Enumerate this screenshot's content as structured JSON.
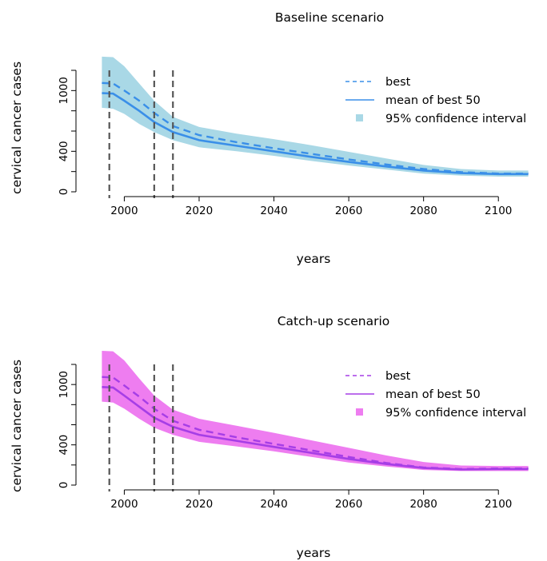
{
  "chart_data": [
    {
      "type": "line",
      "title": "Baseline scenario",
      "xlabel": "years",
      "ylabel": "cervical cancer cases",
      "xlim": [
        1992,
        2110
      ],
      "ylim": [
        0,
        1200
      ],
      "x_ticks": [
        2000,
        2020,
        2040,
        2060,
        2080,
        2100
      ],
      "y_ticks": [
        0,
        200,
        400,
        600,
        800,
        1000,
        1200
      ],
      "y_tick_labels": [
        "0",
        "",
        "400",
        "",
        "",
        "1000",
        ""
      ],
      "vertical_reference_lines": [
        1996,
        2008,
        2013
      ],
      "colors": {
        "line": "#3a8fe8",
        "band": "#a9d8e6",
        "reference": "#555555"
      },
      "legend": {
        "position": "top-right",
        "best_label": "best",
        "mean_label": "mean of best 50",
        "ci_label": "95% confidence interval"
      },
      "series": [
        {
          "name": "best",
          "style": "dashed",
          "x": [
            1994,
            1997,
            2000,
            2004,
            2008,
            2013,
            2020,
            2030,
            2040,
            2050,
            2060,
            2070,
            2080,
            2090,
            2100,
            2108
          ],
          "y": [
            1075,
            1070,
            1000,
            900,
            780,
            650,
            560,
            490,
            430,
            375,
            320,
            270,
            225,
            195,
            180,
            180
          ]
        },
        {
          "name": "mean of best 50",
          "style": "solid",
          "x": [
            1994,
            1997,
            2000,
            2004,
            2008,
            2013,
            2020,
            2030,
            2040,
            2050,
            2060,
            2070,
            2080,
            2090,
            2100,
            2108
          ],
          "y": [
            975,
            970,
            900,
            800,
            690,
            590,
            510,
            455,
            400,
            345,
            295,
            250,
            210,
            185,
            175,
            175
          ]
        },
        {
          "name": "95% confidence interval",
          "style": "band",
          "x": [
            1994,
            1997,
            2000,
            2004,
            2008,
            2013,
            2020,
            2030,
            2040,
            2050,
            2060,
            2070,
            2080,
            2090,
            2100,
            2108
          ],
          "lower": [
            830,
            820,
            770,
            670,
            590,
            510,
            440,
            400,
            355,
            305,
            260,
            220,
            180,
            160,
            150,
            150
          ],
          "upper": [
            1335,
            1330,
            1240,
            1070,
            900,
            740,
            640,
            575,
            520,
            460,
            395,
            330,
            265,
            225,
            210,
            210
          ]
        }
      ]
    },
    {
      "type": "line",
      "title": "Catch-up scenario",
      "xlabel": "years",
      "ylabel": "cervical cancer cases",
      "xlim": [
        1992,
        2110
      ],
      "ylim": [
        0,
        1200
      ],
      "x_ticks": [
        2000,
        2020,
        2040,
        2060,
        2080,
        2100
      ],
      "y_ticks": [
        0,
        200,
        400,
        600,
        800,
        1000,
        1200
      ],
      "y_tick_labels": [
        "0",
        "",
        "400",
        "",
        "",
        "1000",
        ""
      ],
      "vertical_reference_lines": [
        1996,
        2008,
        2013
      ],
      "colors": {
        "line": "#a63ee6",
        "band": "#ee7df0",
        "reference": "#555555"
      },
      "legend": {
        "position": "top-right",
        "best_label": "best",
        "mean_label": "mean of best 50",
        "ci_label": "95% confidence interval"
      },
      "series": [
        {
          "name": "best",
          "style": "dashed",
          "x": [
            1994,
            1997,
            2000,
            2004,
            2008,
            2013,
            2020,
            2030,
            2040,
            2050,
            2060,
            2070,
            2080,
            2090,
            2100,
            2108
          ],
          "y": [
            1075,
            1070,
            990,
            880,
            760,
            640,
            550,
            475,
            410,
            345,
            280,
            220,
            175,
            160,
            165,
            165
          ]
        },
        {
          "name": "mean of best 50",
          "style": "solid",
          "x": [
            1994,
            1997,
            2000,
            2004,
            2008,
            2013,
            2020,
            2030,
            2040,
            2050,
            2060,
            2070,
            2080,
            2090,
            2100,
            2108
          ],
          "y": [
            975,
            970,
            890,
            780,
            670,
            580,
            500,
            440,
            380,
            320,
            260,
            210,
            170,
            155,
            160,
            160
          ]
        },
        {
          "name": "95% confidence interval",
          "style": "band",
          "x": [
            1994,
            1997,
            2000,
            2004,
            2008,
            2013,
            2020,
            2030,
            2040,
            2050,
            2060,
            2070,
            2080,
            2090,
            2100,
            2108
          ],
          "lower": [
            830,
            820,
            760,
            660,
            570,
            500,
            430,
            385,
            335,
            280,
            225,
            185,
            150,
            140,
            140,
            140
          ],
          "upper": [
            1335,
            1330,
            1240,
            1060,
            890,
            750,
            660,
            590,
            520,
            445,
            370,
            295,
            230,
            195,
            190,
            190
          ]
        }
      ]
    }
  ]
}
